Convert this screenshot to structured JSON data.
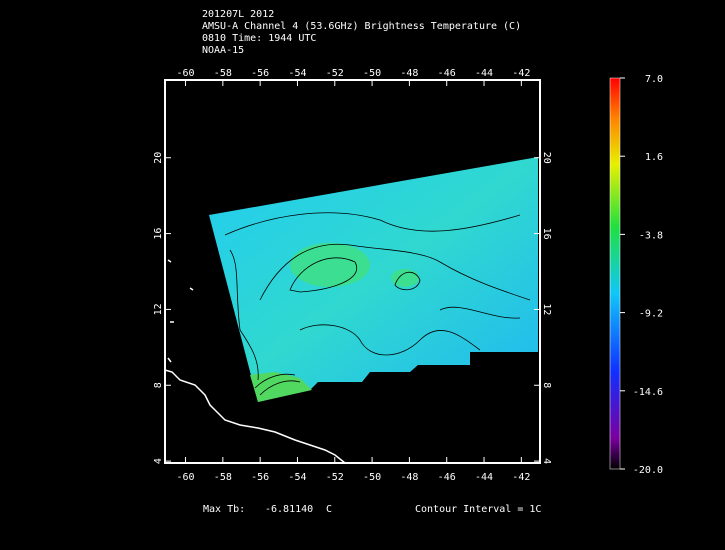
{
  "header": {
    "lines": [
      "201207L 2012",
      "AMSU-A Channel 4 (53.6GHz) Brightness Temperature (C)",
      "0810 Time: 1944 UTC",
      "NOAA-15"
    ]
  },
  "map": {
    "xlim": [
      -61.1,
      -41.0
    ],
    "ylim": [
      3.9,
      24.1
    ],
    "xticks": [
      -60,
      -58,
      -56,
      -54,
      -52,
      -50,
      -48,
      -46,
      -44,
      -42
    ],
    "yticks": [
      4,
      8,
      12,
      16,
      20
    ]
  },
  "colorbar": {
    "lim": [
      -20,
      7
    ],
    "ticks": [
      {
        "value": 7,
        "label": "7.0"
      },
      1.6,
      -3.8,
      -9.2,
      -14.6,
      {
        "value": -20,
        "label": "-20.0"
      }
    ]
  },
  "footer": {
    "max_label": "Max Tb:",
    "max_value": "-6.81140",
    "max_unit": "C",
    "contour": "Contour Interval = 1C"
  }
}
